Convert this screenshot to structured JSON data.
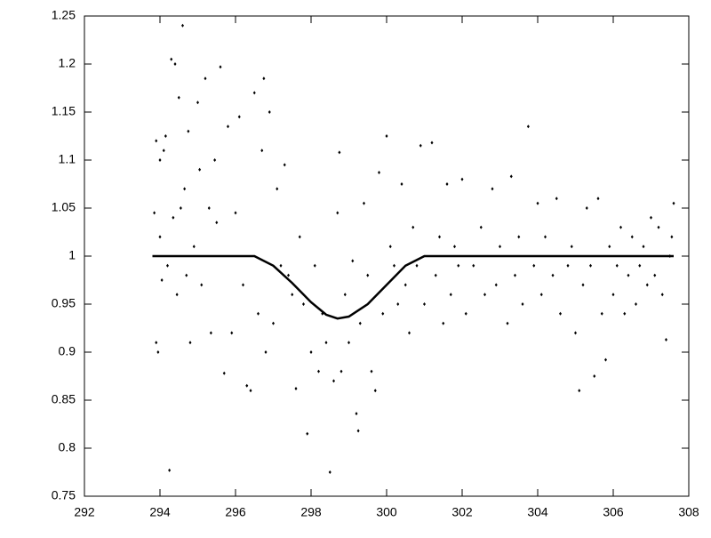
{
  "chart_data": {
    "type": "scatter",
    "xlim": [
      292,
      308
    ],
    "xticks": [
      292,
      294,
      296,
      298,
      300,
      302,
      304,
      306,
      308
    ],
    "ylim": [
      0.75,
      1.25
    ],
    "yticks": [
      0.75,
      0.8,
      0.85,
      0.9,
      0.95,
      1,
      1.05,
      1.1,
      1.15,
      1.2,
      1.25
    ],
    "series": [
      {
        "type": "scatter",
        "color": "#000000",
        "x": [
          293.85,
          293.9,
          293.9,
          293.95,
          294,
          294,
          294.05,
          294.1,
          294.15,
          294.2,
          294.25,
          294.3,
          294.35,
          294.4,
          294.45,
          294.5,
          294.55,
          294.6,
          294.65,
          294.7,
          294.75,
          294.8,
          294.9,
          295,
          295.05,
          295.1,
          295.2,
          295.3,
          295.35,
          295.45,
          295.5,
          295.6,
          295.7,
          295.8,
          295.9,
          296,
          296.1,
          296.2,
          296.3,
          296.4,
          296.5,
          296.6,
          296.7,
          296.75,
          296.8,
          296.9,
          297,
          297.1,
          297.2,
          297.3,
          297.4,
          297.5,
          297.6,
          297.7,
          297.8,
          297.9,
          298,
          298.1,
          298.2,
          298.3,
          298.4,
          298.5,
          298.6,
          298.7,
          298.75,
          298.8,
          298.9,
          299,
          299.1,
          299.2,
          299.25,
          299.3,
          299.4,
          299.5,
          299.6,
          299.7,
          299.8,
          299.9,
          300,
          300.1,
          300.2,
          300.3,
          300.4,
          300.5,
          300.6,
          300.7,
          300.8,
          300.9,
          301,
          301.2,
          301.3,
          301.4,
          301.5,
          301.6,
          301.7,
          301.8,
          301.9,
          302,
          302.1,
          302.3,
          302.5,
          302.6,
          302.8,
          302.9,
          303,
          303.2,
          303.3,
          303.4,
          303.5,
          303.6,
          303.75,
          303.9,
          304,
          304.1,
          304.2,
          304.4,
          304.5,
          304.6,
          304.8,
          304.9,
          305,
          305.1,
          305.2,
          305.3,
          305.4,
          305.5,
          305.6,
          305.7,
          305.8,
          305.9,
          306,
          306.1,
          306.2,
          306.3,
          306.4,
          306.5,
          306.6,
          306.7,
          306.8,
          306.9,
          307,
          307.1,
          307.2,
          307.3,
          307.4,
          307.5,
          307.55,
          307.6
        ],
        "values": [
          1.045,
          1.12,
          0.91,
          0.9,
          1.1,
          1.02,
          0.975,
          1.11,
          1.125,
          0.99,
          0.777,
          1.205,
          1.04,
          1.2,
          0.96,
          1.165,
          1.05,
          1.24,
          1.07,
          0.98,
          1.13,
          0.91,
          1.01,
          1.16,
          1.09,
          0.97,
          1.185,
          1.05,
          0.92,
          1.1,
          1.035,
          1.197,
          0.878,
          1.135,
          0.92,
          1.045,
          1.145,
          0.97,
          0.865,
          0.86,
          1.17,
          0.94,
          1.11,
          1.185,
          0.9,
          1.15,
          0.93,
          1.07,
          0.99,
          1.095,
          0.98,
          0.96,
          0.862,
          1.02,
          0.95,
          0.815,
          0.9,
          0.99,
          0.88,
          0.94,
          0.91,
          0.775,
          0.87,
          1.045,
          1.108,
          0.88,
          0.96,
          0.91,
          0.995,
          0.836,
          0.818,
          0.93,
          1.055,
          0.98,
          0.88,
          0.86,
          1.087,
          0.94,
          1.125,
          1.01,
          0.99,
          0.95,
          1.075,
          0.97,
          0.92,
          1.03,
          0.99,
          1.115,
          0.95,
          1.118,
          0.98,
          1.02,
          0.93,
          1.075,
          0.96,
          1.01,
          0.99,
          1.08,
          0.94,
          0.99,
          1.03,
          0.96,
          1.07,
          0.97,
          1.01,
          0.93,
          1.083,
          0.98,
          1.02,
          0.95,
          1.135,
          0.99,
          1.055,
          0.96,
          1.02,
          0.98,
          1.06,
          0.94,
          0.99,
          1.01,
          0.92,
          0.86,
          0.97,
          1.05,
          0.99,
          0.875,
          1.06,
          0.94,
          0.892,
          1.01,
          0.96,
          0.99,
          1.03,
          0.94,
          0.98,
          1.02,
          0.95,
          0.99,
          1.01,
          0.97,
          1.04,
          0.98,
          1.03,
          0.96,
          0.913,
          1.0,
          1.02,
          1.055
        ]
      },
      {
        "type": "line",
        "color": "#000000",
        "x": [
          293.8,
          296.5,
          297,
          297.5,
          298,
          298.4,
          298.7,
          299,
          299.5,
          300,
          300.5,
          301,
          307.6
        ],
        "values": [
          1,
          1,
          0.99,
          0.972,
          0.952,
          0.939,
          0.935,
          0.937,
          0.95,
          0.97,
          0.99,
          1,
          1
        ]
      }
    ]
  }
}
